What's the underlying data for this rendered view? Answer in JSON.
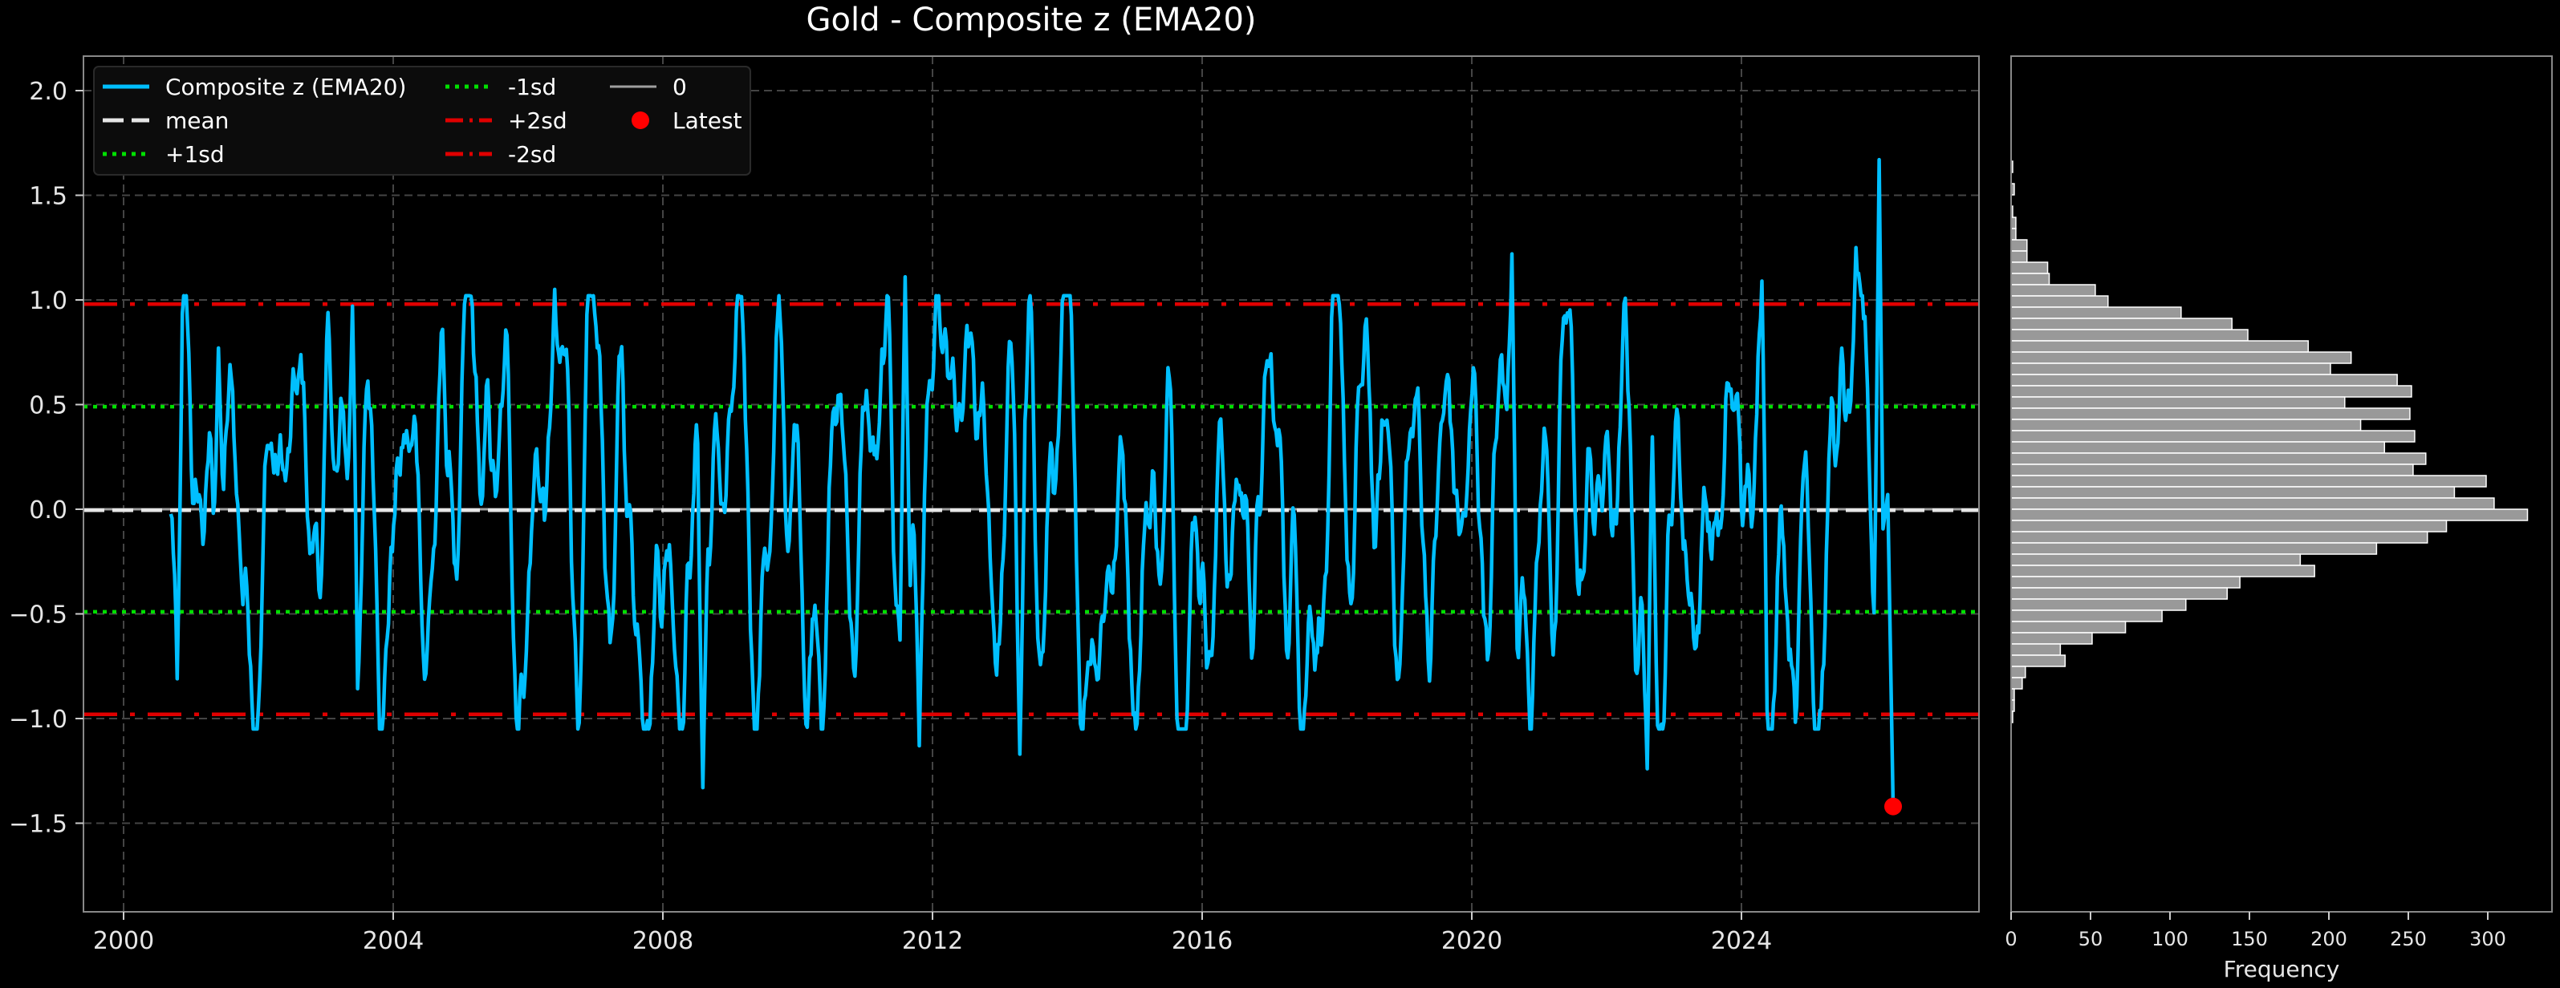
{
  "chart_data": [
    {
      "type": "line",
      "title": "Gold - Composite z (EMA20)",
      "xlabel": "",
      "ylabel": "",
      "x_range": [
        1999.5,
        2027.6
      ],
      "ylim": [
        -1.9,
        2.17
      ],
      "x_ticks": [
        2000,
        2004,
        2008,
        2012,
        2016,
        2020,
        2024
      ],
      "x_tick_labels": [
        "2000",
        "2004",
        "2008",
        "2012",
        "2016",
        "2020",
        "2024"
      ],
      "y_ticks": [
        2.0,
        1.5,
        1.0,
        0.5,
        0.0,
        -0.5,
        -1.0,
        -1.5
      ],
      "y_tick_labels": [
        "2.0",
        "1.5",
        "1.0",
        "0.5",
        "0.0",
        "−0.5",
        "−1.0",
        "−1.5"
      ],
      "grid": true,
      "legend_position": "upper left",
      "series": [
        {
          "name": "Composite z (EMA20)",
          "color": "#00bfff",
          "x_start": 2000.7,
          "x_end": 2026.25,
          "start_value": -0.08,
          "range": [
            -1.33,
            1.67
          ],
          "notable_points": [
            {
              "x": 2000.8,
              "y": -0.81
            },
            {
              "x": 2001.4,
              "y": 0.77
            },
            {
              "x": 2003.4,
              "y": 0.97
            },
            {
              "x": 2006.4,
              "y": 1.05
            },
            {
              "x": 2008.6,
              "y": -1.33
            },
            {
              "x": 2011.6,
              "y": 1.11
            },
            {
              "x": 2011.8,
              "y": -1.13
            },
            {
              "x": 2013.3,
              "y": -1.17
            },
            {
              "x": 2020.6,
              "y": 1.22
            },
            {
              "x": 2022.6,
              "y": -1.24
            },
            {
              "x": 2024.3,
              "y": 1.09
            },
            {
              "x": 2025.7,
              "y": 1.25
            },
            {
              "x": 2026.05,
              "y": 1.67
            },
            {
              "x": 2026.25,
              "y": -1.42
            }
          ]
        },
        {
          "name": "mean",
          "color": "#e6e6e6",
          "style": "dashed",
          "y": -0.005
        },
        {
          "name": "+1sd",
          "color": "#00e000",
          "style": "dotted",
          "y": 0.49
        },
        {
          "name": "-1sd",
          "color": "#00e000",
          "style": "dotted",
          "y": -0.49
        },
        {
          "name": "+2sd",
          "color": "#e00000",
          "style": "dashdot",
          "y": 0.98
        },
        {
          "name": "-2sd",
          "color": "#e00000",
          "style": "dashdot",
          "y": -0.98
        },
        {
          "name": "0",
          "color": "#a0a0a0",
          "style": "solid",
          "y": 0.0
        },
        {
          "name": "Latest",
          "color": "#ff0000",
          "style": "marker",
          "x": 2026.25,
          "y": -1.42
        }
      ]
    },
    {
      "type": "bar",
      "orientation": "horizontal",
      "title": "",
      "xlabel": "Frequency",
      "ylabel": "",
      "xlim": [
        0,
        342
      ],
      "x_ticks": [
        0,
        50,
        100,
        150,
        200,
        250,
        300
      ],
      "x_tick_labels": [
        "0",
        "50",
        "100",
        "150",
        "200",
        "250",
        "300"
      ],
      "bin_edges_top": 1.7,
      "bin_width": 0.0625,
      "values": [
        1,
        0,
        2,
        0,
        1,
        3,
        3,
        10,
        10,
        23,
        24,
        53,
        61,
        107,
        139,
        149,
        187,
        214,
        201,
        243,
        252,
        210,
        251,
        220,
        254,
        235,
        261,
        253,
        299,
        279,
        304,
        325,
        274,
        262,
        230,
        182,
        191,
        144,
        136,
        110,
        95,
        72,
        51,
        31,
        34,
        9,
        7,
        2,
        2,
        1
      ],
      "bar_color": "#999999",
      "edge_color": "#ffffff"
    }
  ],
  "legend": {
    "items": [
      {
        "label": "Composite z (EMA20)",
        "symbol": "solid",
        "color": "#00bfff"
      },
      {
        "label": "mean",
        "symbol": "dashed",
        "color": "#e6e6e6"
      },
      {
        "label": "+1sd",
        "symbol": "dotted",
        "color": "#00e000"
      },
      {
        "label": "-1sd",
        "symbol": "dotted",
        "color": "#00e000"
      },
      {
        "label": "+2sd",
        "symbol": "dashdot",
        "color": "#e00000"
      },
      {
        "label": "-2sd",
        "symbol": "dashdot",
        "color": "#e00000"
      },
      {
        "label": "0",
        "symbol": "solid",
        "color": "#a0a0a0"
      },
      {
        "label": "Latest",
        "symbol": "dot",
        "color": "#ff0000"
      }
    ]
  },
  "colors": {
    "background": "#000000",
    "grid": "#444444",
    "axis": "#888888",
    "text": "#e6e6e6"
  }
}
